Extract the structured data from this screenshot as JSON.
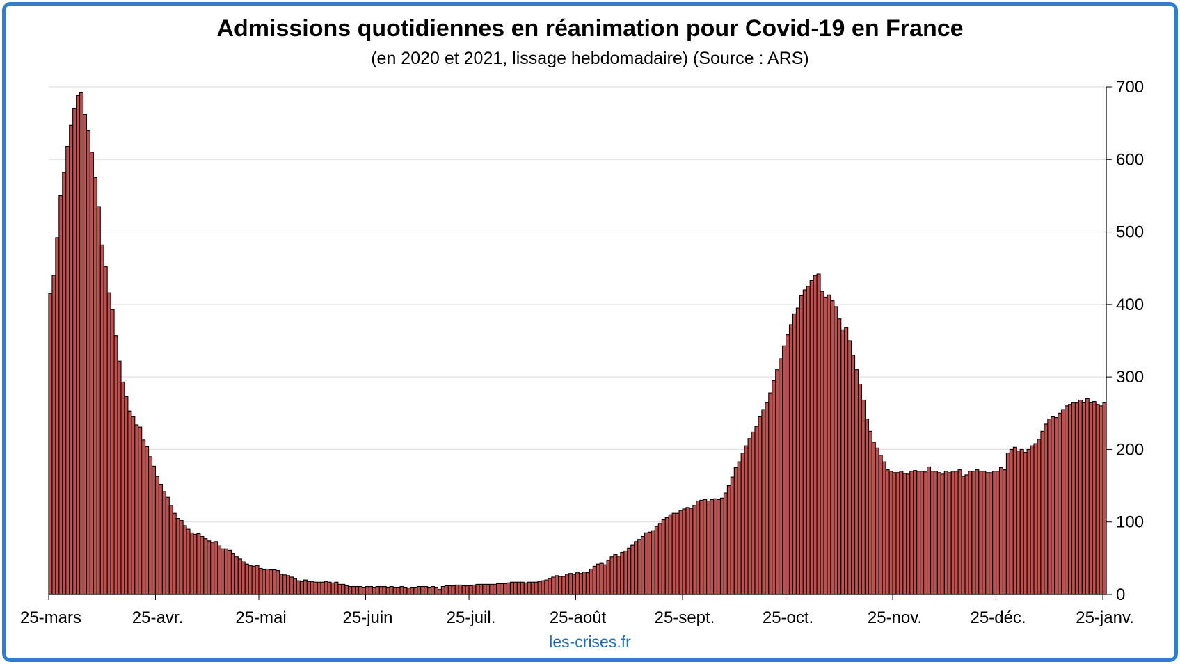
{
  "chart_data": {
    "type": "bar",
    "title": "Admissions quotidiennes en réanimation pour Covid-19 en France",
    "subtitle": "(en 2020 et 2021, lissage hebdomadaire) (Source : ARS)",
    "credit": "les-crises.fr",
    "ylim": [
      0,
      700
    ],
    "y_ticks": [
      0,
      100,
      200,
      300,
      400,
      500,
      600,
      700
    ],
    "y_axis_side": "right",
    "grid": true,
    "x_tick_labels": [
      "25-mars",
      "25-avr.",
      "25-mai",
      "25-juin",
      "25-juil.",
      "25-août",
      "25-sept.",
      "25-oct.",
      "25-nov.",
      "25-déc.",
      "25-janv."
    ],
    "x_tick_day_index": [
      0,
      31,
      61,
      92,
      122,
      153,
      184,
      214,
      245,
      275,
      306
    ],
    "bar_color": "#c0504d",
    "bar_edge_color": "#000000",
    "values": [
      415,
      440,
      492,
      550,
      582,
      618,
      647,
      670,
      688,
      692,
      662,
      640,
      610,
      575,
      535,
      482,
      452,
      416,
      393,
      357,
      322,
      293,
      273,
      253,
      245,
      234,
      231,
      213,
      204,
      190,
      177,
      163,
      152,
      142,
      134,
      123,
      112,
      105,
      102,
      95,
      90,
      85,
      83,
      84,
      80,
      77,
      74,
      72,
      73,
      67,
      63,
      63,
      61,
      56,
      52,
      49,
      45,
      42,
      40,
      39,
      40,
      36,
      34,
      35,
      34,
      34,
      33,
      28,
      27,
      26,
      24,
      22,
      19,
      18,
      20,
      18,
      18,
      17,
      17,
      17,
      18,
      17,
      16,
      17,
      14,
      14,
      12,
      11,
      11,
      11,
      11,
      10,
      11,
      11,
      10,
      11,
      11,
      11,
      10,
      11,
      10,
      10,
      11,
      10,
      9,
      10,
      10,
      11,
      11,
      11,
      10,
      11,
      10,
      7,
      11,
      12,
      12,
      12,
      13,
      13,
      12,
      12,
      12,
      13,
      14,
      14,
      14,
      14,
      14,
      14,
      15,
      15,
      15,
      16,
      17,
      17,
      17,
      17,
      16,
      17,
      17,
      17,
      18,
      19,
      20,
      22,
      24,
      26,
      25,
      25,
      28,
      29,
      28,
      30,
      29,
      31,
      30,
      35,
      39,
      42,
      43,
      41,
      47,
      52,
      55,
      53,
      58,
      60,
      64,
      68,
      73,
      76,
      80,
      85,
      86,
      88,
      94,
      98,
      103,
      106,
      110,
      112,
      112,
      116,
      118,
      120,
      119,
      123,
      129,
      130,
      131,
      129,
      131,
      132,
      131,
      133,
      140,
      150,
      162,
      175,
      183,
      195,
      205,
      215,
      224,
      232,
      245,
      255,
      265,
      278,
      295,
      310,
      325,
      343,
      358,
      372,
      387,
      395,
      412,
      420,
      425,
      433,
      440,
      442,
      418,
      410,
      413,
      405,
      397,
      380,
      365,
      368,
      350,
      330,
      310,
      290,
      268,
      242,
      225,
      210,
      202,
      192,
      183,
      172,
      170,
      168,
      168,
      170,
      167,
      166,
      170,
      171,
      170,
      170,
      169,
      176,
      170,
      170,
      168,
      166,
      170,
      168,
      170,
      170,
      172,
      163,
      165,
      170,
      170,
      172,
      170,
      170,
      168,
      168,
      170,
      170,
      175,
      172,
      195,
      200,
      203,
      198,
      200,
      196,
      200,
      205,
      208,
      214,
      225,
      235,
      242,
      245,
      244,
      250,
      255,
      260,
      262,
      265,
      265,
      268,
      265,
      270,
      265,
      266,
      262,
      260,
      265
    ]
  }
}
